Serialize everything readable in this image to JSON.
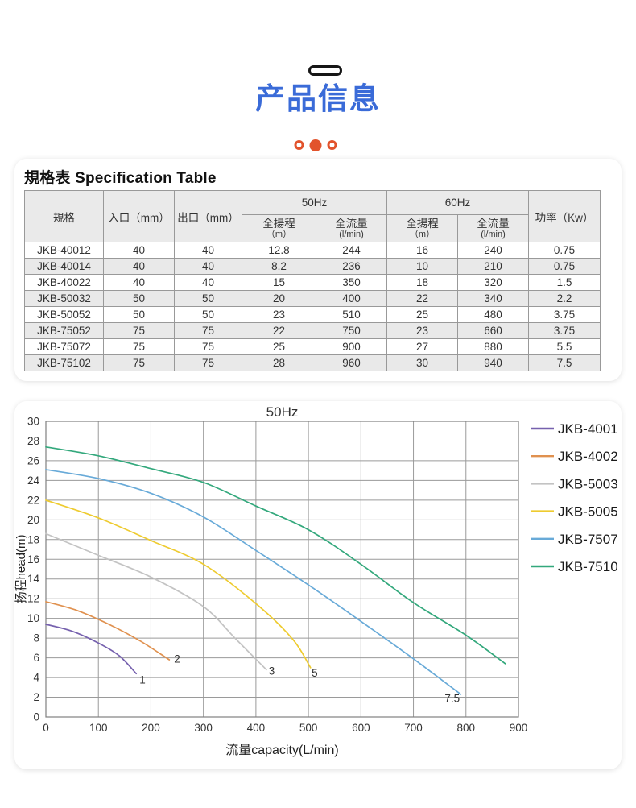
{
  "page": {
    "accent_blue": "#3A6BD8",
    "accent_orange": "#E2532C",
    "card_bg": "#ffffff"
  },
  "header": {
    "title": "产品信息",
    "dots": [
      "outline",
      "filled",
      "outline"
    ]
  },
  "spec_table": {
    "title": "規格表 Specification Table",
    "columns": [
      {
        "label": "規格",
        "rowspan": 2
      },
      {
        "label": "入口（mm）",
        "rowspan": 2
      },
      {
        "label": "出口（mm）",
        "rowspan": 2
      },
      {
        "label": "50Hz",
        "colspan": 2,
        "children": [
          {
            "line1": "全揚程",
            "line2": "（m）"
          },
          {
            "line1": "全流量",
            "line2": "(l/min)"
          }
        ]
      },
      {
        "label": "60Hz",
        "colspan": 2,
        "children": [
          {
            "line1": "全揚程",
            "line2": "（m）"
          },
          {
            "line1": "全流量",
            "line2": "(l/min)"
          }
        ]
      },
      {
        "label": "功率（Kw）",
        "rowspan": 2
      }
    ],
    "rows": [
      [
        "JKB-40012",
        "40",
        "40",
        "12.8",
        "244",
        "16",
        "240",
        "0.75"
      ],
      [
        "JKB-40014",
        "40",
        "40",
        "8.2",
        "236",
        "10",
        "210",
        "0.75"
      ],
      [
        "JKB-40022",
        "40",
        "40",
        "15",
        "350",
        "18",
        "320",
        "1.5"
      ],
      [
        "JKB-50032",
        "50",
        "50",
        "20",
        "400",
        "22",
        "340",
        "2.2"
      ],
      [
        "JKB-50052",
        "50",
        "50",
        "23",
        "510",
        "25",
        "480",
        "3.75"
      ],
      [
        "JKB-75052",
        "75",
        "75",
        "22",
        "750",
        "23",
        "660",
        "3.75"
      ],
      [
        "JKB-75072",
        "75",
        "75",
        "25",
        "900",
        "27",
        "880",
        "5.5"
      ],
      [
        "JKB-75102",
        "75",
        "75",
        "28",
        "960",
        "30",
        "940",
        "7.5"
      ]
    ]
  },
  "chart_data": {
    "type": "line",
    "title": "50Hz",
    "xlabel": "流量capacity(L/min)",
    "ylabel": "扬程head(m)",
    "xlim": [
      0,
      900
    ],
    "ylim": [
      0,
      30
    ],
    "xtick_step": 100,
    "ytick_step": 2,
    "grid": true,
    "legend_position": "right",
    "series": [
      {
        "name": "JKB-4001",
        "color": "#7661AE",
        "end_label": "1",
        "label_at": [
          184,
          3.4
        ],
        "points": [
          [
            0,
            9.4
          ],
          [
            50,
            8.7
          ],
          [
            100,
            7.5
          ],
          [
            140,
            6.2
          ],
          [
            172,
            4.4
          ]
        ]
      },
      {
        "name": "JKB-4002",
        "color": "#E0914F",
        "end_label": "2",
        "label_at": [
          250,
          5.5
        ],
        "points": [
          [
            0,
            11.7
          ],
          [
            60,
            10.8
          ],
          [
            120,
            9.4
          ],
          [
            180,
            7.7
          ],
          [
            235,
            5.8
          ]
        ]
      },
      {
        "name": "JKB-5003",
        "color": "#C3C3C3",
        "end_label": "3",
        "label_at": [
          430,
          4.3
        ],
        "points": [
          [
            0,
            18.6
          ],
          [
            100,
            16.4
          ],
          [
            200,
            14.2
          ],
          [
            300,
            11.2
          ],
          [
            360,
            8.0
          ],
          [
            420,
            4.8
          ]
        ]
      },
      {
        "name": "JKB-5005",
        "color": "#EECB2F",
        "end_label": "5",
        "label_at": [
          512,
          4.1
        ],
        "points": [
          [
            0,
            22.0
          ],
          [
            100,
            20.2
          ],
          [
            200,
            17.9
          ],
          [
            300,
            15.5
          ],
          [
            400,
            11.5
          ],
          [
            470,
            7.9
          ],
          [
            504,
            5.0
          ]
        ]
      },
      {
        "name": "JKB-7507",
        "color": "#68AAD8",
        "end_label": "7.5",
        "label_at": [
          774,
          1.5
        ],
        "points": [
          [
            0,
            25.1
          ],
          [
            100,
            24.2
          ],
          [
            200,
            22.7
          ],
          [
            300,
            20.3
          ],
          [
            400,
            16.9
          ],
          [
            500,
            13.4
          ],
          [
            600,
            9.7
          ],
          [
            700,
            5.9
          ],
          [
            790,
            2.3
          ]
        ]
      },
      {
        "name": "JKB-7510",
        "color": "#33A87C",
        "end_label": "",
        "label_at": null,
        "points": [
          [
            0,
            27.4
          ],
          [
            100,
            26.5
          ],
          [
            200,
            25.2
          ],
          [
            300,
            23.8
          ],
          [
            400,
            21.4
          ],
          [
            500,
            19.0
          ],
          [
            600,
            15.5
          ],
          [
            700,
            11.6
          ],
          [
            800,
            8.3
          ],
          [
            875,
            5.4
          ]
        ]
      }
    ]
  }
}
